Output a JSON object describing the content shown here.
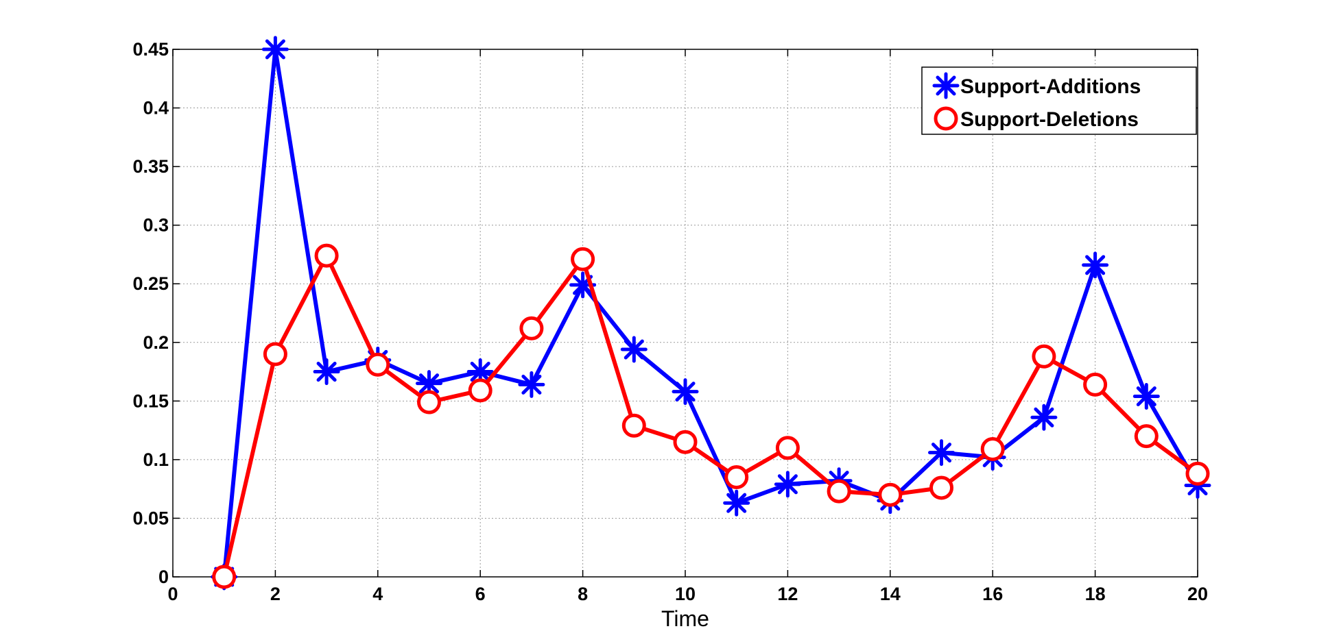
{
  "chart_data": {
    "type": "line",
    "title": "",
    "xlabel": "Time",
    "ylabel": "",
    "xlim": [
      0,
      20
    ],
    "ylim": [
      0,
      0.45
    ],
    "xticks": [
      0,
      2,
      4,
      6,
      8,
      10,
      12,
      14,
      16,
      18,
      20
    ],
    "yticks": [
      0,
      0.05,
      0.1,
      0.15,
      0.2,
      0.25,
      0.3,
      0.35,
      0.4,
      0.45
    ],
    "xtick_labels": [
      "0",
      "2",
      "4",
      "6",
      "8",
      "10",
      "12",
      "14",
      "16",
      "18",
      "20"
    ],
    "ytick_labels": [
      "0",
      "0.05",
      "0.1",
      "0.15",
      "0.2",
      "0.25",
      "0.3",
      "0.35",
      "0.4",
      "0.45"
    ],
    "grid": true,
    "legend_position": "top-right",
    "x": [
      1,
      2,
      3,
      4,
      5,
      6,
      7,
      8,
      9,
      10,
      11,
      12,
      13,
      14,
      15,
      16,
      17,
      18,
      19,
      20
    ],
    "series": [
      {
        "name": "Support-Additions",
        "color": "#0000ff",
        "marker": "asterisk",
        "values": [
          0.0,
          0.45,
          0.175,
          0.185,
          0.165,
          0.175,
          0.164,
          0.249,
          0.194,
          0.158,
          0.063,
          0.079,
          0.082,
          0.065,
          0.106,
          0.102,
          0.136,
          0.266,
          0.154,
          0.078
        ]
      },
      {
        "name": "Support-Deletions",
        "color": "#ff0000",
        "marker": "circle",
        "values": [
          0.0,
          0.19,
          0.274,
          0.181,
          0.149,
          0.159,
          0.212,
          0.271,
          0.129,
          0.115,
          0.085,
          0.11,
          0.073,
          0.07,
          0.076,
          0.109,
          0.188,
          0.164,
          0.12,
          0.088
        ]
      }
    ]
  }
}
